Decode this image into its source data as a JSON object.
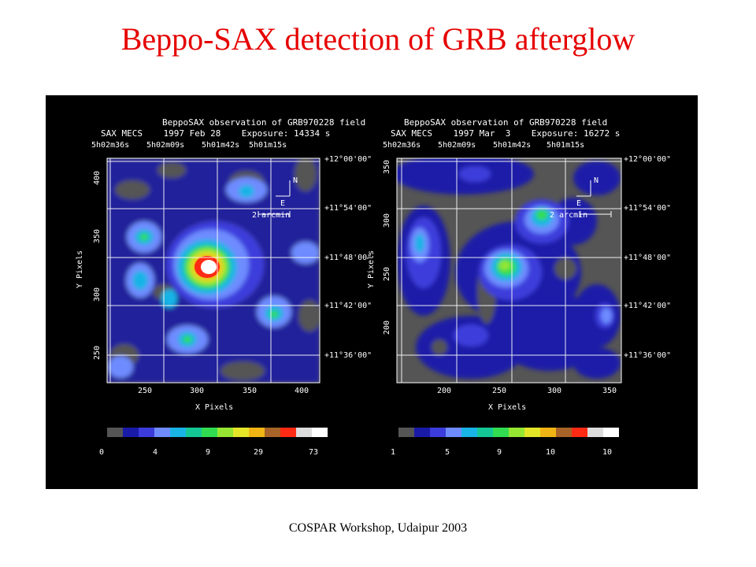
{
  "title": "Beppo-SAX detection of GRB afterglow",
  "footer": "COSPAR Workshop, Udaipur 2003",
  "colors": {
    "title": "#e60000",
    "background": "#000000",
    "scale": [
      "#555555",
      "#1a1aa8",
      "#3c3cdc",
      "#6e8cff",
      "#19b4e6",
      "#14c896",
      "#32dc50",
      "#96e632",
      "#e6e628",
      "#f0b414",
      "#a86428",
      "#ff2a14",
      "#dcdcdc",
      "#ffffff"
    ]
  },
  "panels": [
    {
      "header": [
        "BeppoSAX observation of GRB970228 field",
        "SAX MECS    1997 Feb 28    Exposure: 14334 s"
      ],
      "ra_ticks": [
        "5h02m36s",
        "5h02m09s",
        "5h01m42s",
        "5h01m15s"
      ],
      "dec_ticks": [
        "+12°00'00\"",
        "+11°54'00\"",
        "+11°48'00\"",
        "+11°42'00\"",
        "+11°36'00\""
      ],
      "x_ticks": [
        "250",
        "300",
        "350",
        "400"
      ],
      "y_ticks": [
        "400",
        "350",
        "300",
        "250"
      ],
      "xlabel": "X Pixels",
      "ylabel": "Y Pixels",
      "compass": {
        "n": "N",
        "e": "E",
        "scale": "2 arcmin"
      },
      "colorbar_labels": [
        "0",
        "4",
        "9",
        "29",
        "73"
      ]
    },
    {
      "header": [
        "BeppoSAX observation of GRB970228 field",
        "SAX MECS    1997 Mar  3    Exposure: 16272 s"
      ],
      "ra_ticks": [
        "5h02m36s",
        "5h02m09s",
        "5h01m42s",
        "5h01m15s"
      ],
      "dec_ticks": [
        "+12°00'00\"",
        "+11°54'00\"",
        "+11°48'00\"",
        "+11°42'00\"",
        "+11°36'00\""
      ],
      "x_ticks": [
        "200",
        "250",
        "300",
        "350"
      ],
      "y_ticks": [
        "350",
        "300",
        "250",
        "200"
      ],
      "xlabel": "X Pixels",
      "ylabel": "Y Pixels",
      "compass": {
        "n": "N",
        "e": "E",
        "scale": "2 arcmin"
      },
      "colorbar_labels": [
        "1",
        "5",
        "9",
        "10",
        "10"
      ]
    }
  ]
}
